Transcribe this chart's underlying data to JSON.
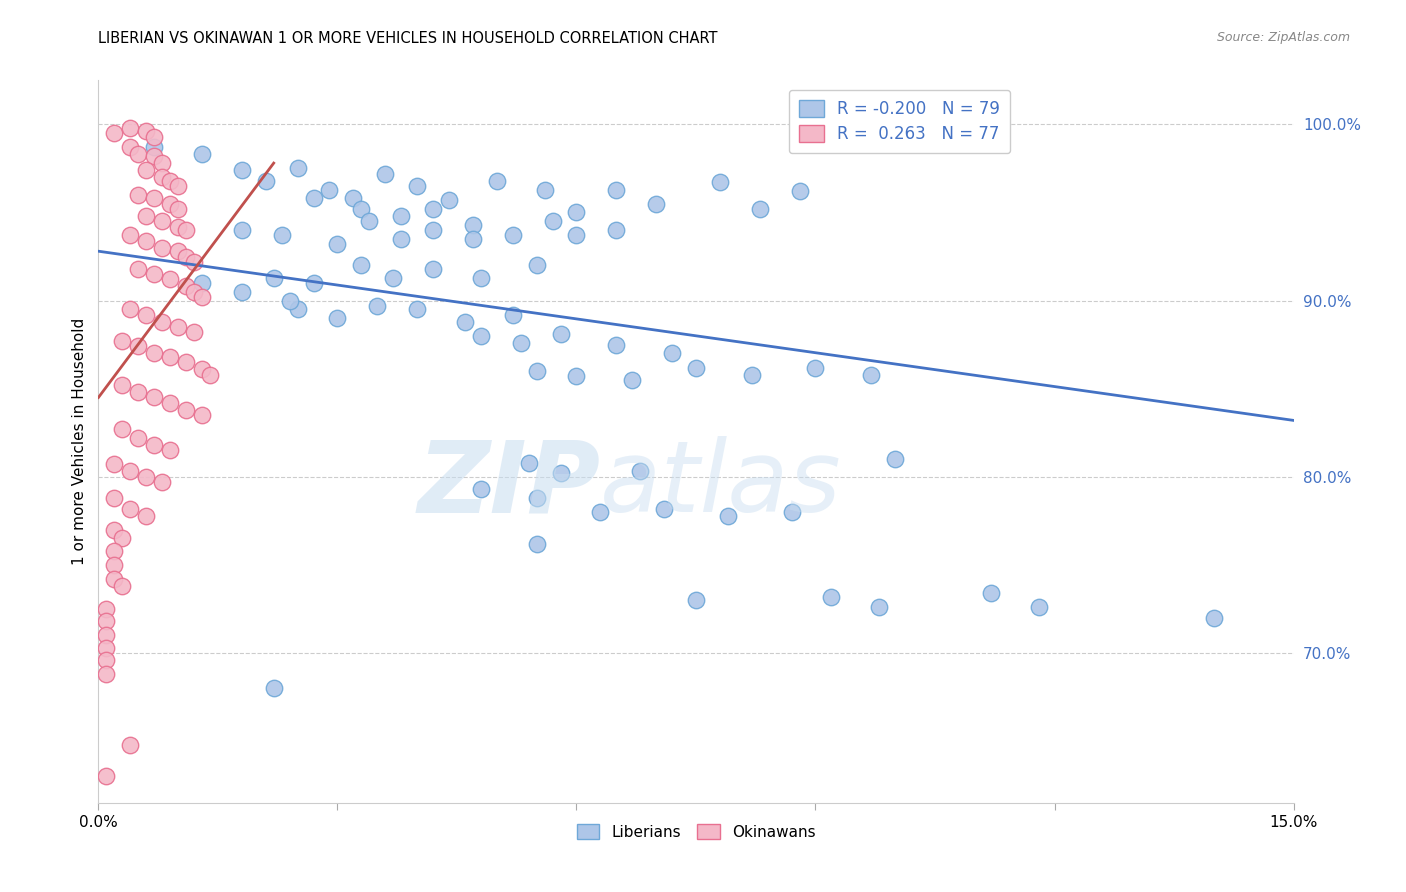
{
  "title": "LIBERIAN VS OKINAWAN 1 OR MORE VEHICLES IN HOUSEHOLD CORRELATION CHART",
  "source": "Source: ZipAtlas.com",
  "ylabel": "1 or more Vehicles in Household",
  "ytick_values": [
    0.7,
    0.8,
    0.9,
    1.0
  ],
  "xlim": [
    0.0,
    0.15
  ],
  "ylim": [
    0.615,
    1.025
  ],
  "blue_color": "#aec6e8",
  "pink_color": "#f4b8c8",
  "blue_edge_color": "#6fa8d8",
  "pink_edge_color": "#e87090",
  "blue_line_color": "#4472c4",
  "pink_line_color": "#c0504d",
  "blue_line": [
    [
      0.0,
      0.928
    ],
    [
      0.15,
      0.832
    ]
  ],
  "pink_line": [
    [
      0.0,
      0.845
    ],
    [
      0.022,
      0.978
    ]
  ],
  "blue_scatter": [
    [
      0.007,
      0.987
    ],
    [
      0.013,
      0.983
    ],
    [
      0.018,
      0.974
    ],
    [
      0.021,
      0.968
    ],
    [
      0.025,
      0.975
    ],
    [
      0.029,
      0.963
    ],
    [
      0.032,
      0.958
    ],
    [
      0.036,
      0.972
    ],
    [
      0.04,
      0.965
    ],
    [
      0.044,
      0.957
    ],
    [
      0.05,
      0.968
    ],
    [
      0.056,
      0.963
    ],
    [
      0.06,
      0.95
    ],
    [
      0.065,
      0.963
    ],
    [
      0.07,
      0.955
    ],
    [
      0.078,
      0.967
    ],
    [
      0.083,
      0.952
    ],
    [
      0.088,
      0.962
    ],
    [
      0.027,
      0.958
    ],
    [
      0.033,
      0.952
    ],
    [
      0.038,
      0.948
    ],
    [
      0.042,
      0.952
    ],
    [
      0.047,
      0.943
    ],
    [
      0.052,
      0.937
    ],
    [
      0.057,
      0.945
    ],
    [
      0.06,
      0.937
    ],
    [
      0.065,
      0.94
    ],
    [
      0.018,
      0.94
    ],
    [
      0.023,
      0.937
    ],
    [
      0.03,
      0.932
    ],
    [
      0.034,
      0.945
    ],
    [
      0.038,
      0.935
    ],
    [
      0.042,
      0.94
    ],
    [
      0.047,
      0.935
    ],
    [
      0.055,
      0.92
    ],
    [
      0.022,
      0.913
    ],
    [
      0.027,
      0.91
    ],
    [
      0.033,
      0.92
    ],
    [
      0.037,
      0.913
    ],
    [
      0.042,
      0.918
    ],
    [
      0.048,
      0.913
    ],
    [
      0.025,
      0.895
    ],
    [
      0.03,
      0.89
    ],
    [
      0.035,
      0.897
    ],
    [
      0.04,
      0.895
    ],
    [
      0.046,
      0.888
    ],
    [
      0.052,
      0.892
    ],
    [
      0.013,
      0.91
    ],
    [
      0.018,
      0.905
    ],
    [
      0.024,
      0.9
    ],
    [
      0.048,
      0.88
    ],
    [
      0.053,
      0.876
    ],
    [
      0.058,
      0.881
    ],
    [
      0.065,
      0.875
    ],
    [
      0.072,
      0.87
    ],
    [
      0.055,
      0.86
    ],
    [
      0.06,
      0.857
    ],
    [
      0.067,
      0.855
    ],
    [
      0.075,
      0.862
    ],
    [
      0.082,
      0.858
    ],
    [
      0.09,
      0.862
    ],
    [
      0.097,
      0.858
    ],
    [
      0.054,
      0.808
    ],
    [
      0.058,
      0.802
    ],
    [
      0.068,
      0.803
    ],
    [
      0.1,
      0.81
    ],
    [
      0.048,
      0.793
    ],
    [
      0.055,
      0.788
    ],
    [
      0.063,
      0.78
    ],
    [
      0.071,
      0.782
    ],
    [
      0.079,
      0.778
    ],
    [
      0.087,
      0.78
    ],
    [
      0.055,
      0.762
    ],
    [
      0.075,
      0.73
    ],
    [
      0.092,
      0.732
    ],
    [
      0.098,
      0.726
    ],
    [
      0.112,
      0.734
    ],
    [
      0.118,
      0.726
    ],
    [
      0.14,
      0.72
    ],
    [
      0.022,
      0.68
    ]
  ],
  "pink_scatter": [
    [
      0.001,
      0.63
    ],
    [
      0.004,
      0.648
    ],
    [
      0.002,
      0.995
    ],
    [
      0.004,
      0.998
    ],
    [
      0.006,
      0.996
    ],
    [
      0.007,
      0.993
    ],
    [
      0.004,
      0.987
    ],
    [
      0.005,
      0.983
    ],
    [
      0.007,
      0.982
    ],
    [
      0.008,
      0.978
    ],
    [
      0.006,
      0.974
    ],
    [
      0.008,
      0.97
    ],
    [
      0.009,
      0.968
    ],
    [
      0.01,
      0.965
    ],
    [
      0.005,
      0.96
    ],
    [
      0.007,
      0.958
    ],
    [
      0.009,
      0.955
    ],
    [
      0.01,
      0.952
    ],
    [
      0.006,
      0.948
    ],
    [
      0.008,
      0.945
    ],
    [
      0.01,
      0.942
    ],
    [
      0.011,
      0.94
    ],
    [
      0.004,
      0.937
    ],
    [
      0.006,
      0.934
    ],
    [
      0.008,
      0.93
    ],
    [
      0.01,
      0.928
    ],
    [
      0.011,
      0.925
    ],
    [
      0.012,
      0.922
    ],
    [
      0.005,
      0.918
    ],
    [
      0.007,
      0.915
    ],
    [
      0.009,
      0.912
    ],
    [
      0.011,
      0.908
    ],
    [
      0.012,
      0.905
    ],
    [
      0.013,
      0.902
    ],
    [
      0.004,
      0.895
    ],
    [
      0.006,
      0.892
    ],
    [
      0.008,
      0.888
    ],
    [
      0.01,
      0.885
    ],
    [
      0.012,
      0.882
    ],
    [
      0.003,
      0.877
    ],
    [
      0.005,
      0.874
    ],
    [
      0.007,
      0.87
    ],
    [
      0.009,
      0.868
    ],
    [
      0.011,
      0.865
    ],
    [
      0.013,
      0.861
    ],
    [
      0.014,
      0.858
    ],
    [
      0.003,
      0.852
    ],
    [
      0.005,
      0.848
    ],
    [
      0.007,
      0.845
    ],
    [
      0.009,
      0.842
    ],
    [
      0.011,
      0.838
    ],
    [
      0.013,
      0.835
    ],
    [
      0.003,
      0.827
    ],
    [
      0.005,
      0.822
    ],
    [
      0.007,
      0.818
    ],
    [
      0.009,
      0.815
    ],
    [
      0.002,
      0.807
    ],
    [
      0.004,
      0.803
    ],
    [
      0.006,
      0.8
    ],
    [
      0.008,
      0.797
    ],
    [
      0.002,
      0.788
    ],
    [
      0.004,
      0.782
    ],
    [
      0.006,
      0.778
    ],
    [
      0.002,
      0.77
    ],
    [
      0.003,
      0.765
    ],
    [
      0.002,
      0.758
    ],
    [
      0.002,
      0.75
    ],
    [
      0.002,
      0.742
    ],
    [
      0.003,
      0.738
    ],
    [
      0.001,
      0.725
    ],
    [
      0.001,
      0.718
    ],
    [
      0.001,
      0.71
    ],
    [
      0.001,
      0.703
    ],
    [
      0.001,
      0.696
    ],
    [
      0.001,
      0.688
    ]
  ]
}
